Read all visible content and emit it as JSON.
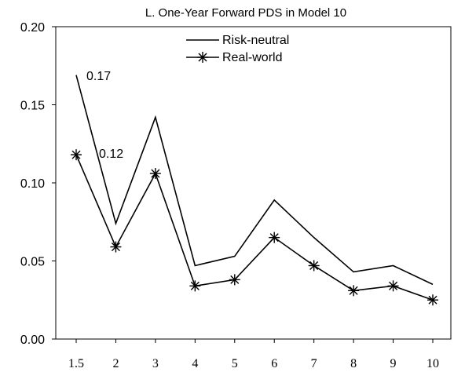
{
  "chart_data": {
    "type": "line",
    "title": "L. One-Year Forward PDS in Model 10",
    "categories": [
      "1.5",
      "2",
      "3",
      "4",
      "5",
      "6",
      "7",
      "8",
      "9",
      "10"
    ],
    "ylim": [
      0,
      0.2
    ],
    "yticks": [
      "0.00",
      "0.05",
      "0.10",
      "0.15",
      "0.20"
    ],
    "grid": false,
    "legend_position": "top-center",
    "series": [
      {
        "name": "Risk-neutral",
        "marker": "none",
        "color": "#000000",
        "values": [
          0.169,
          0.074,
          0.142,
          0.047,
          0.053,
          0.089,
          0.065,
          0.043,
          0.047,
          0.035
        ]
      },
      {
        "name": "Real-world",
        "marker": "asterisk",
        "color": "#000000",
        "values": [
          0.118,
          0.059,
          0.106,
          0.034,
          0.038,
          0.065,
          0.047,
          0.031,
          0.034,
          0.025
        ]
      }
    ],
    "annotations": [
      "0.17",
      "0.12"
    ]
  }
}
